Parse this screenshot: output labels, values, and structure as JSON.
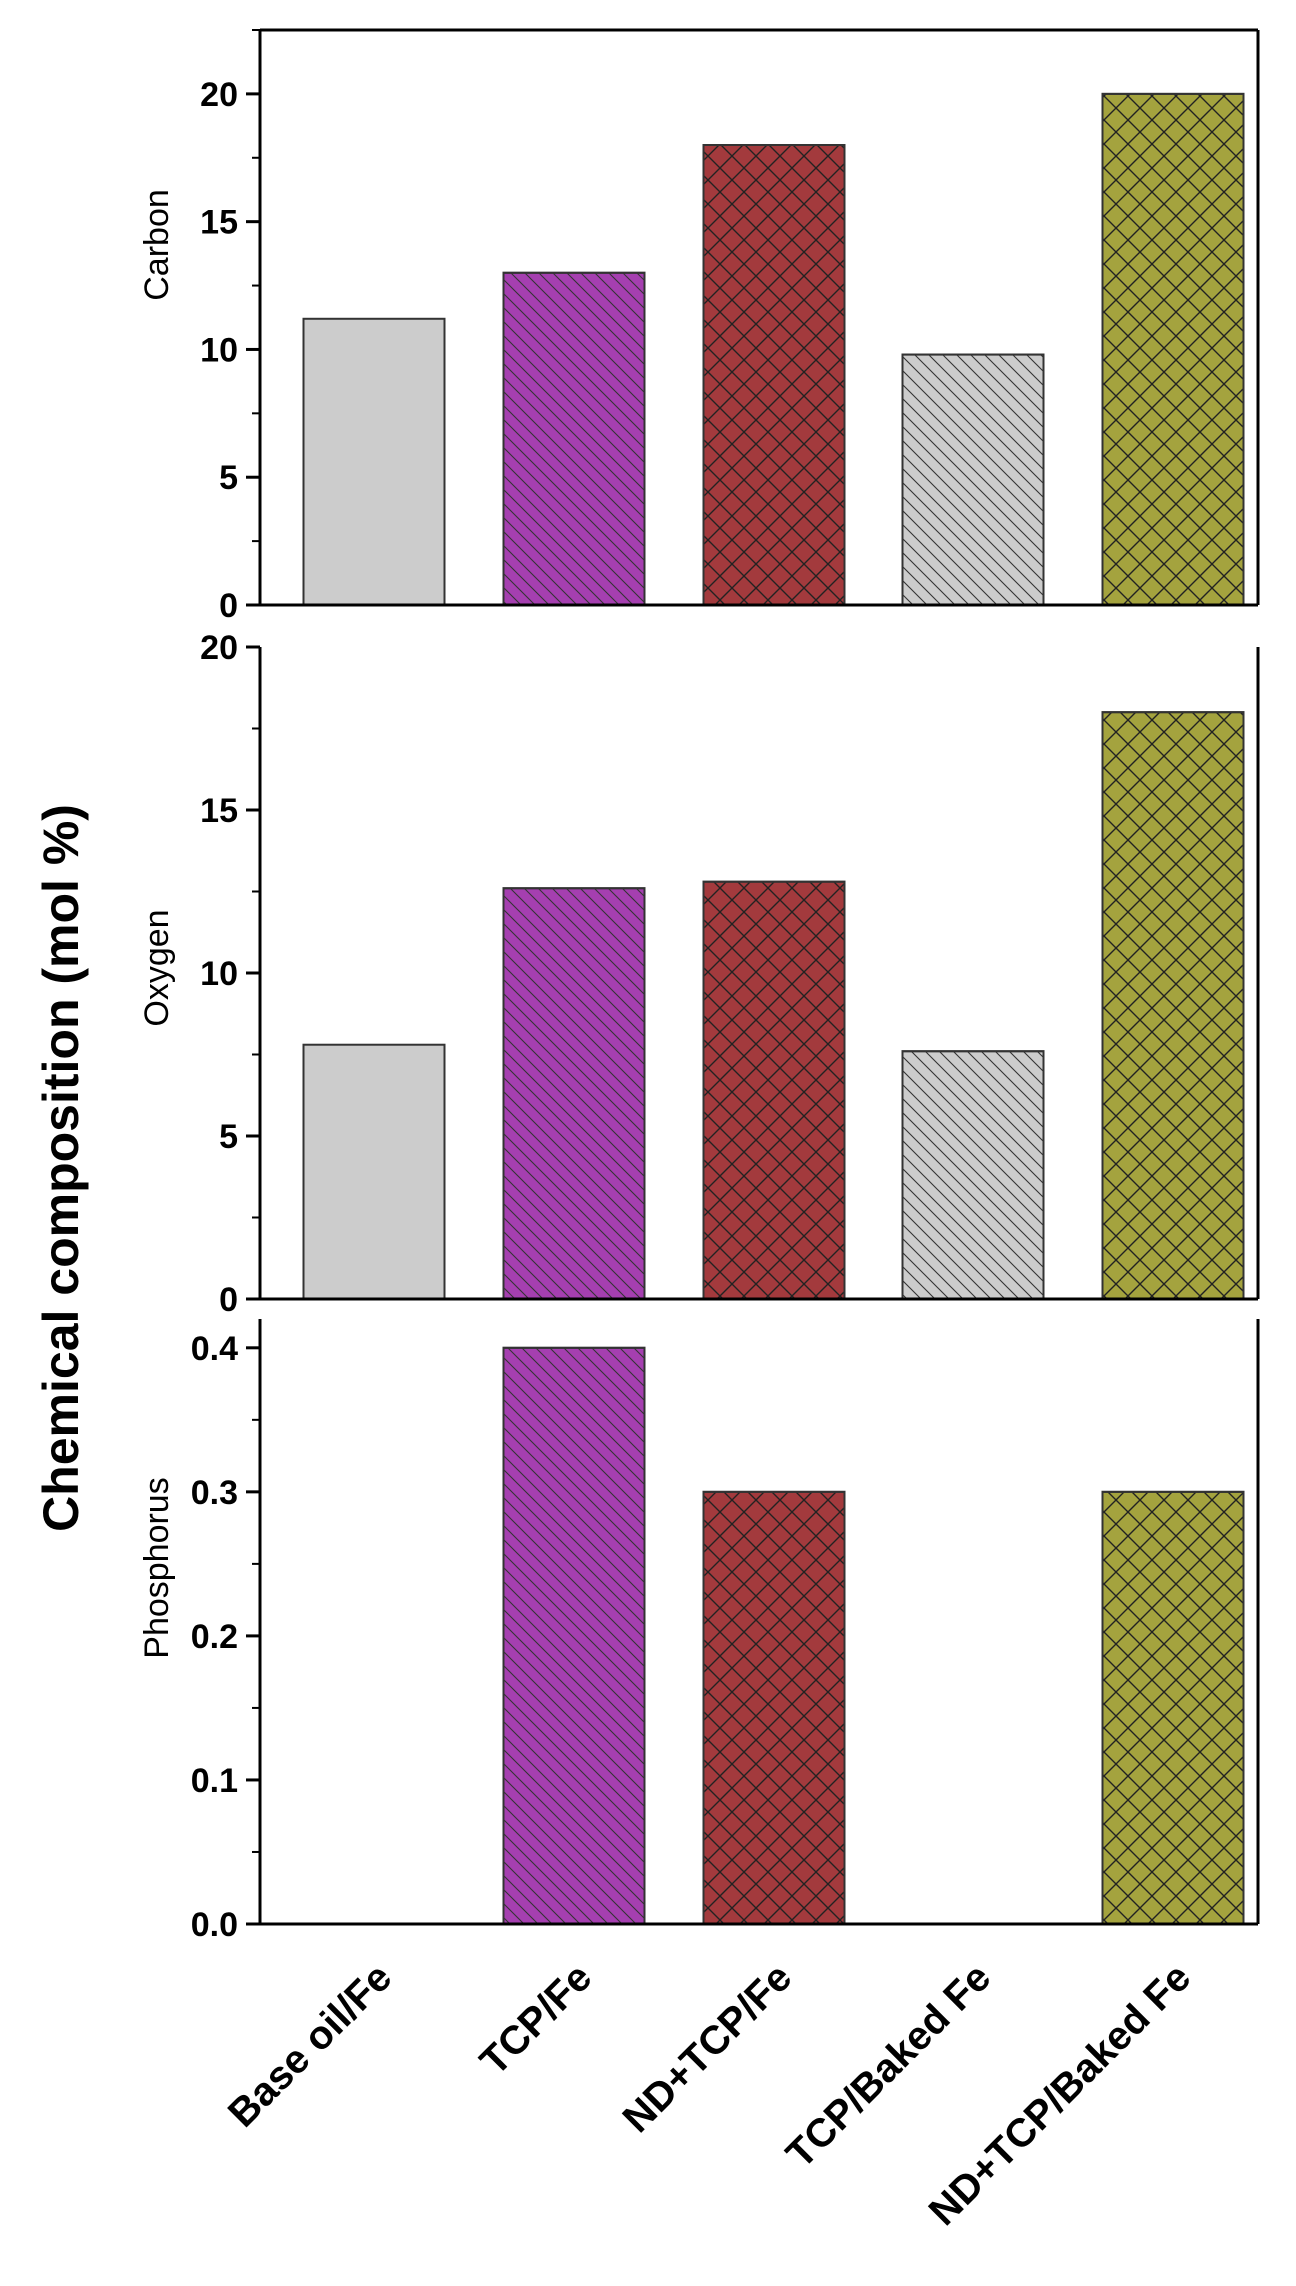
{
  "chart_data": {
    "type": "bar",
    "ylabel": "Chemical composition (mol %)",
    "categories": [
      "Base oil/Fe",
      "TCP/Fe",
      "ND+TCP/Fe",
      "TCP/Baked Fe",
      "ND+TCP/Baked Fe"
    ],
    "bar_colors": [
      "#cccccc",
      "#a53fb0",
      "#a33a3d",
      "#cccccc",
      "#a4a33e"
    ],
    "bar_patterns": [
      "solid",
      "diag",
      "cross",
      "diag",
      "cross"
    ],
    "panels": [
      {
        "name": "Carbon",
        "ylabel": "Carbon",
        "ylim": [
          0,
          22.5
        ],
        "ticks": [
          0,
          5,
          10,
          15,
          20
        ],
        "tick_labels": [
          "0",
          "5",
          "10",
          "15",
          "20"
        ],
        "values": [
          11.2,
          13.0,
          18.0,
          9.8,
          20.0
        ]
      },
      {
        "name": "Oxygen",
        "ylabel": "Oxygen",
        "ylim": [
          0,
          20
        ],
        "ticks": [
          0,
          5,
          10,
          15,
          20
        ],
        "tick_labels": [
          "0",
          "5",
          "10",
          "15",
          "20"
        ],
        "values": [
          7.8,
          12.6,
          12.8,
          7.6,
          18.0
        ]
      },
      {
        "name": "Phosphorus",
        "ylabel": "Phosphorus",
        "ylim": [
          0,
          0.42
        ],
        "ticks": [
          0,
          0.1,
          0.2,
          0.3,
          0.4
        ],
        "tick_labels": [
          "0.0",
          "0.1",
          "0.2",
          "0.3",
          "0.4"
        ],
        "values": [
          0,
          0.4,
          0.3,
          0,
          0.3
        ]
      }
    ]
  }
}
